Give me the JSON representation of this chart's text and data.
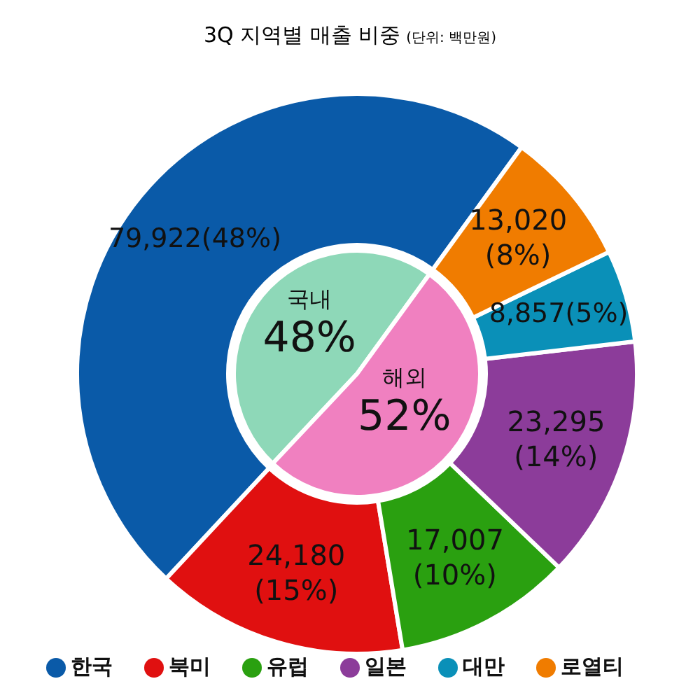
{
  "chart_data": [
    {
      "type": "donut",
      "title": "3Q 지역별 매출 비중",
      "subtitle": "(단위: 백만원)",
      "legend": "bottom",
      "categories": [
        "한국",
        "북미",
        "유럽",
        "일본",
        "대만",
        "로열티"
      ],
      "values": [
        79922,
        24180,
        17007,
        23295,
        8857,
        13020
      ],
      "colors": [
        "#0a5aa8",
        "#e01010",
        "#2aa010",
        "#8c3c9a",
        "#0a90b8",
        "#f07c00"
      ],
      "value_labels": [
        "79,922(48%)",
        "24,180\n(15%)",
        "17,007\n(10%)",
        "23,295\n(14%)",
        "8,857(5%)",
        "13,020\n(8%)"
      ]
    },
    {
      "type": "pie",
      "categories": [
        "국내",
        "해외"
      ],
      "values": [
        48,
        52
      ],
      "colors": [
        "#8ed8b8",
        "#f080c0"
      ],
      "value_labels": [
        "48%",
        "52%"
      ]
    }
  ]
}
